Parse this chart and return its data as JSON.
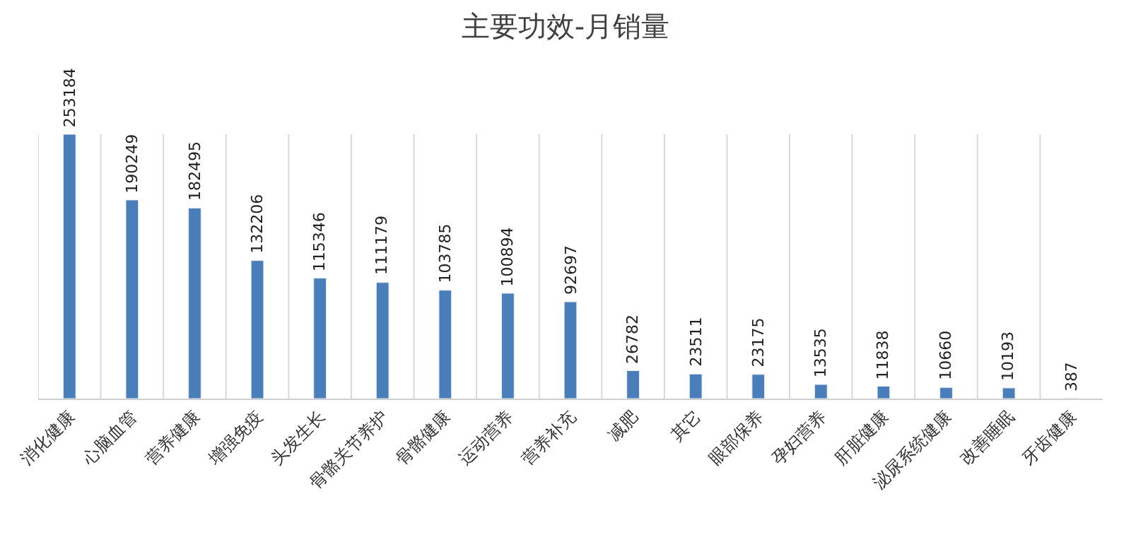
{
  "chart_data": {
    "type": "bar",
    "title": "主要功效-月销量",
    "categories": [
      "消化健康",
      "心脑血管",
      "营养健康",
      "增强免疫",
      "头发生长",
      "骨骼关节养护",
      "骨骼健康",
      "运动营养",
      "营养补充",
      "减肥",
      "其它",
      "眼部保养",
      "孕妇营养",
      "肝脏健康",
      "泌尿系统健康",
      "改善睡眠",
      "牙齿健康"
    ],
    "values": [
      253184,
      190249,
      182495,
      132206,
      115346,
      111179,
      103785,
      100894,
      92697,
      26782,
      23511,
      23175,
      13535,
      11838,
      10660,
      10193,
      387
    ],
    "color": "#4a7ebb",
    "data_labels": true,
    "grid": "x"
  }
}
